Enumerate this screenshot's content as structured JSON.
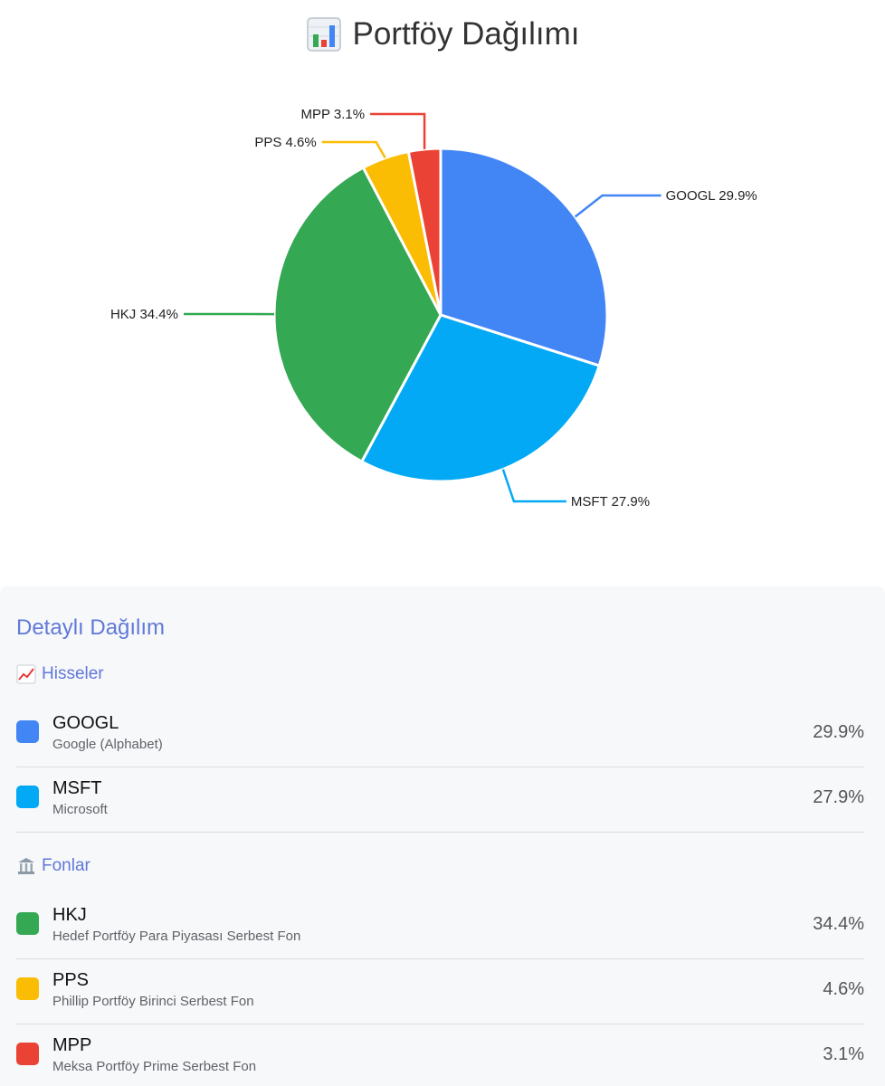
{
  "header": {
    "title": "Portföy Dağılımı",
    "icon": "bar-chart-icon"
  },
  "chart_data": {
    "type": "pie",
    "title": "Portföy Dağılımı",
    "start_angle_deg": 0,
    "direction": "clockwise",
    "slices": [
      {
        "label": "GOOGL",
        "value": 29.9,
        "display": "GOOGL 29.9%",
        "color": "#4285f4"
      },
      {
        "label": "MSFT",
        "value": 27.9,
        "display": "MSFT 27.9%",
        "color": "#03a9f4"
      },
      {
        "label": "HKJ",
        "value": 34.4,
        "display": "HKJ 34.4%",
        "color": "#34a853"
      },
      {
        "label": "PPS",
        "value": 4.6,
        "display": "PPS 4.6%",
        "color": "#fbbc04"
      },
      {
        "label": "MPP",
        "value": 3.1,
        "display": "MPP 3.1%",
        "color": "#ea4335"
      }
    ]
  },
  "details": {
    "heading": "Detaylı Dağılım",
    "groups": [
      {
        "title": "Hisseler",
        "icon": "chart-increasing-icon",
        "items": [
          {
            "ticker": "GOOGL",
            "name": "Google (Alphabet)",
            "percent": "29.9%",
            "color": "#4285f4"
          },
          {
            "ticker": "MSFT",
            "name": "Microsoft",
            "percent": "27.9%",
            "color": "#03a9f4"
          }
        ]
      },
      {
        "title": "Fonlar",
        "icon": "bank-icon",
        "items": [
          {
            "ticker": "HKJ",
            "name": "Hedef Portföy Para Piyasası Serbest Fon",
            "percent": "34.4%",
            "color": "#34a853"
          },
          {
            "ticker": "PPS",
            "name": "Phillip Portföy Birinci Serbest Fon",
            "percent": "4.6%",
            "color": "#fbbc04"
          },
          {
            "ticker": "MPP",
            "name": "Meksa Portföy Prime Serbest Fon",
            "percent": "3.1%",
            "color": "#ea4335"
          }
        ]
      }
    ]
  }
}
